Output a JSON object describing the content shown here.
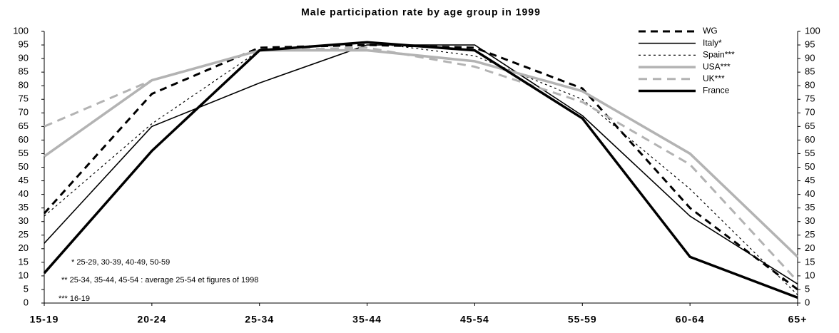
{
  "chart_data": {
    "type": "line",
    "title": "Male participation rate by age group in 1999",
    "categories": [
      "15-19",
      "20-24",
      "25-34",
      "35-44",
      "45-54",
      "55-59",
      "60-64",
      "65+"
    ],
    "series": [
      {
        "name": "WG",
        "color": "#000000",
        "values": [
          33,
          77,
          94,
          95,
          94,
          79,
          35,
          5
        ]
      },
      {
        "name": "Italy*",
        "color": "#000000",
        "values": [
          22,
          65,
          81,
          95,
          95,
          69,
          32,
          7
        ]
      },
      {
        "name": "Spain***",
        "color": "#000000",
        "values": [
          32,
          66,
          93,
          96,
          91,
          75,
          42,
          3
        ]
      },
      {
        "name": "USA***",
        "color": "#b3b3b3",
        "values": [
          54,
          82,
          93,
          93,
          89,
          78,
          55,
          17
        ]
      },
      {
        "name": "UK***",
        "color": "#b3b3b3",
        "values": [
          65,
          82,
          93,
          94,
          87,
          74,
          51,
          8
        ]
      },
      {
        "name": "France",
        "color": "#000000",
        "values": [
          11,
          56,
          93,
          96,
          93,
          68,
          17,
          2
        ]
      }
    ],
    "ylim": [
      0,
      100
    ],
    "yticks": [
      0,
      5,
      10,
      15,
      20,
      25,
      30,
      35,
      40,
      45,
      50,
      55,
      60,
      65,
      70,
      75,
      80,
      85,
      90,
      95,
      100
    ],
    "y2lim": [
      0,
      100
    ],
    "y2ticks": [
      0,
      5,
      10,
      15,
      20,
      25,
      30,
      35,
      40,
      45,
      50,
      55,
      60,
      65,
      70,
      75,
      80,
      85,
      90,
      95,
      100
    ],
    "legend": "upper right",
    "annotations": [
      "* 25-29, 30-39, 40-49, 50-59",
      "** 25-34, 35-44, 45-54 : average 25-54 et figures of 1998",
      "*** 16-19"
    ]
  }
}
